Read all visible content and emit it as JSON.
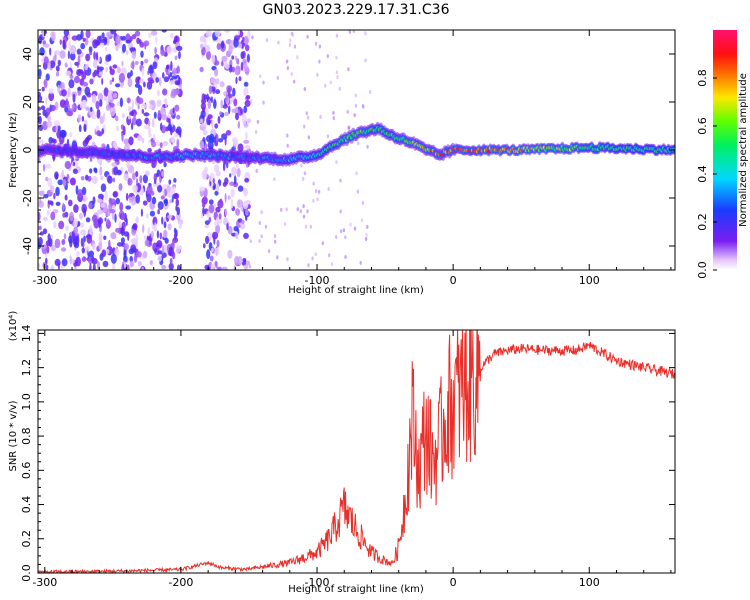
{
  "title": "GN03.2023.229.17.31.C36",
  "colors": {
    "snr_line": "#e8302a",
    "frame": "#000000"
  },
  "chart_data": [
    {
      "type": "heatmap",
      "title": "GN03.2023.229.17.31.C36",
      "xlabel": "Height of straight line (km)",
      "ylabel": "Frequency (Hz)",
      "xlim": [
        -305,
        163
      ],
      "ylim": [
        -50,
        50
      ],
      "xticks": [
        -300,
        -200,
        -100,
        0,
        100
      ],
      "xtick_labels": [
        "-300",
        "-200",
        "-100",
        "0",
        "100"
      ],
      "yticks": [
        -40,
        -20,
        0,
        20,
        40
      ],
      "ytick_labels": [
        "-40",
        "-20",
        "0",
        "20",
        "40"
      ],
      "colorbar": {
        "label": "Normalized spectral amplitude",
        "range": [
          0,
          1
        ],
        "ticks": [
          0.0,
          0.2,
          0.4,
          0.6,
          0.8
        ],
        "tick_labels": [
          "0.0",
          "0.2",
          "0.4",
          "0.6",
          "0.8"
        ],
        "colormap": "rainbow (white → purple → blue → cyan → green → yellow → orange → red → magenta)"
      },
      "noise_regions_km": [
        [
          -305,
          -200
        ],
        [
          -185,
          -150
        ]
      ],
      "ridge": {
        "x": [
          -300,
          -260,
          -220,
          -190,
          -150,
          -120,
          -100,
          -85,
          -70,
          -55,
          -45,
          -30,
          -20,
          -10,
          0,
          20,
          50,
          100,
          163
        ],
        "y": [
          0,
          -1,
          -3,
          -2,
          -3,
          -4,
          -2,
          3,
          7,
          9,
          6,
          3,
          0,
          -2,
          0,
          0,
          0,
          1,
          0
        ],
        "amplitude": [
          0.25,
          0.3,
          0.35,
          0.4,
          0.3,
          0.4,
          0.5,
          0.6,
          0.65,
          0.6,
          0.6,
          0.7,
          0.8,
          0.95,
          0.95,
          0.95,
          0.8,
          0.6,
          0.5
        ]
      }
    },
    {
      "type": "line",
      "xlabel": "Height of straight line (km)",
      "ylabel": "SNR (10 * v/v)",
      "y_multiplier": "(x10⁴)",
      "xlim": [
        -305,
        163
      ],
      "ylim": [
        0,
        1.42
      ],
      "xticks": [
        -300,
        -200,
        -100,
        0,
        100
      ],
      "xtick_labels": [
        "-300",
        "-200",
        "-100",
        "0",
        "100"
      ],
      "yticks": [
        0.0,
        0.2,
        0.4,
        0.6,
        0.8,
        1.0,
        1.2,
        1.4
      ],
      "ytick_labels": [
        "0.0",
        "0.2",
        "0.4",
        "0.6",
        "0.8",
        "1.0",
        "1.2",
        "1.4"
      ],
      "series": [
        {
          "x": [
            -305,
            -250,
            -200,
            -180,
            -170,
            -150,
            -120,
            -100,
            -90,
            -80,
            -70,
            -60,
            -55,
            -50,
            -45,
            -40,
            -35,
            -30,
            -25,
            -20,
            -15,
            -10,
            -5,
            0,
            10,
            20,
            30,
            40,
            50,
            70,
            90,
            100,
            120,
            140,
            163
          ],
          "y": [
            0.005,
            0.01,
            0.02,
            0.06,
            0.03,
            0.02,
            0.05,
            0.1,
            0.18,
            0.32,
            0.2,
            0.1,
            0.08,
            0.06,
            0.05,
            0.15,
            0.45,
            0.9,
            0.6,
            0.85,
            0.65,
            0.75,
            0.95,
            1.0,
            1.1,
            1.2,
            1.28,
            1.3,
            1.31,
            1.3,
            1.3,
            1.33,
            1.24,
            1.2,
            1.16
          ]
        }
      ]
    }
  ]
}
